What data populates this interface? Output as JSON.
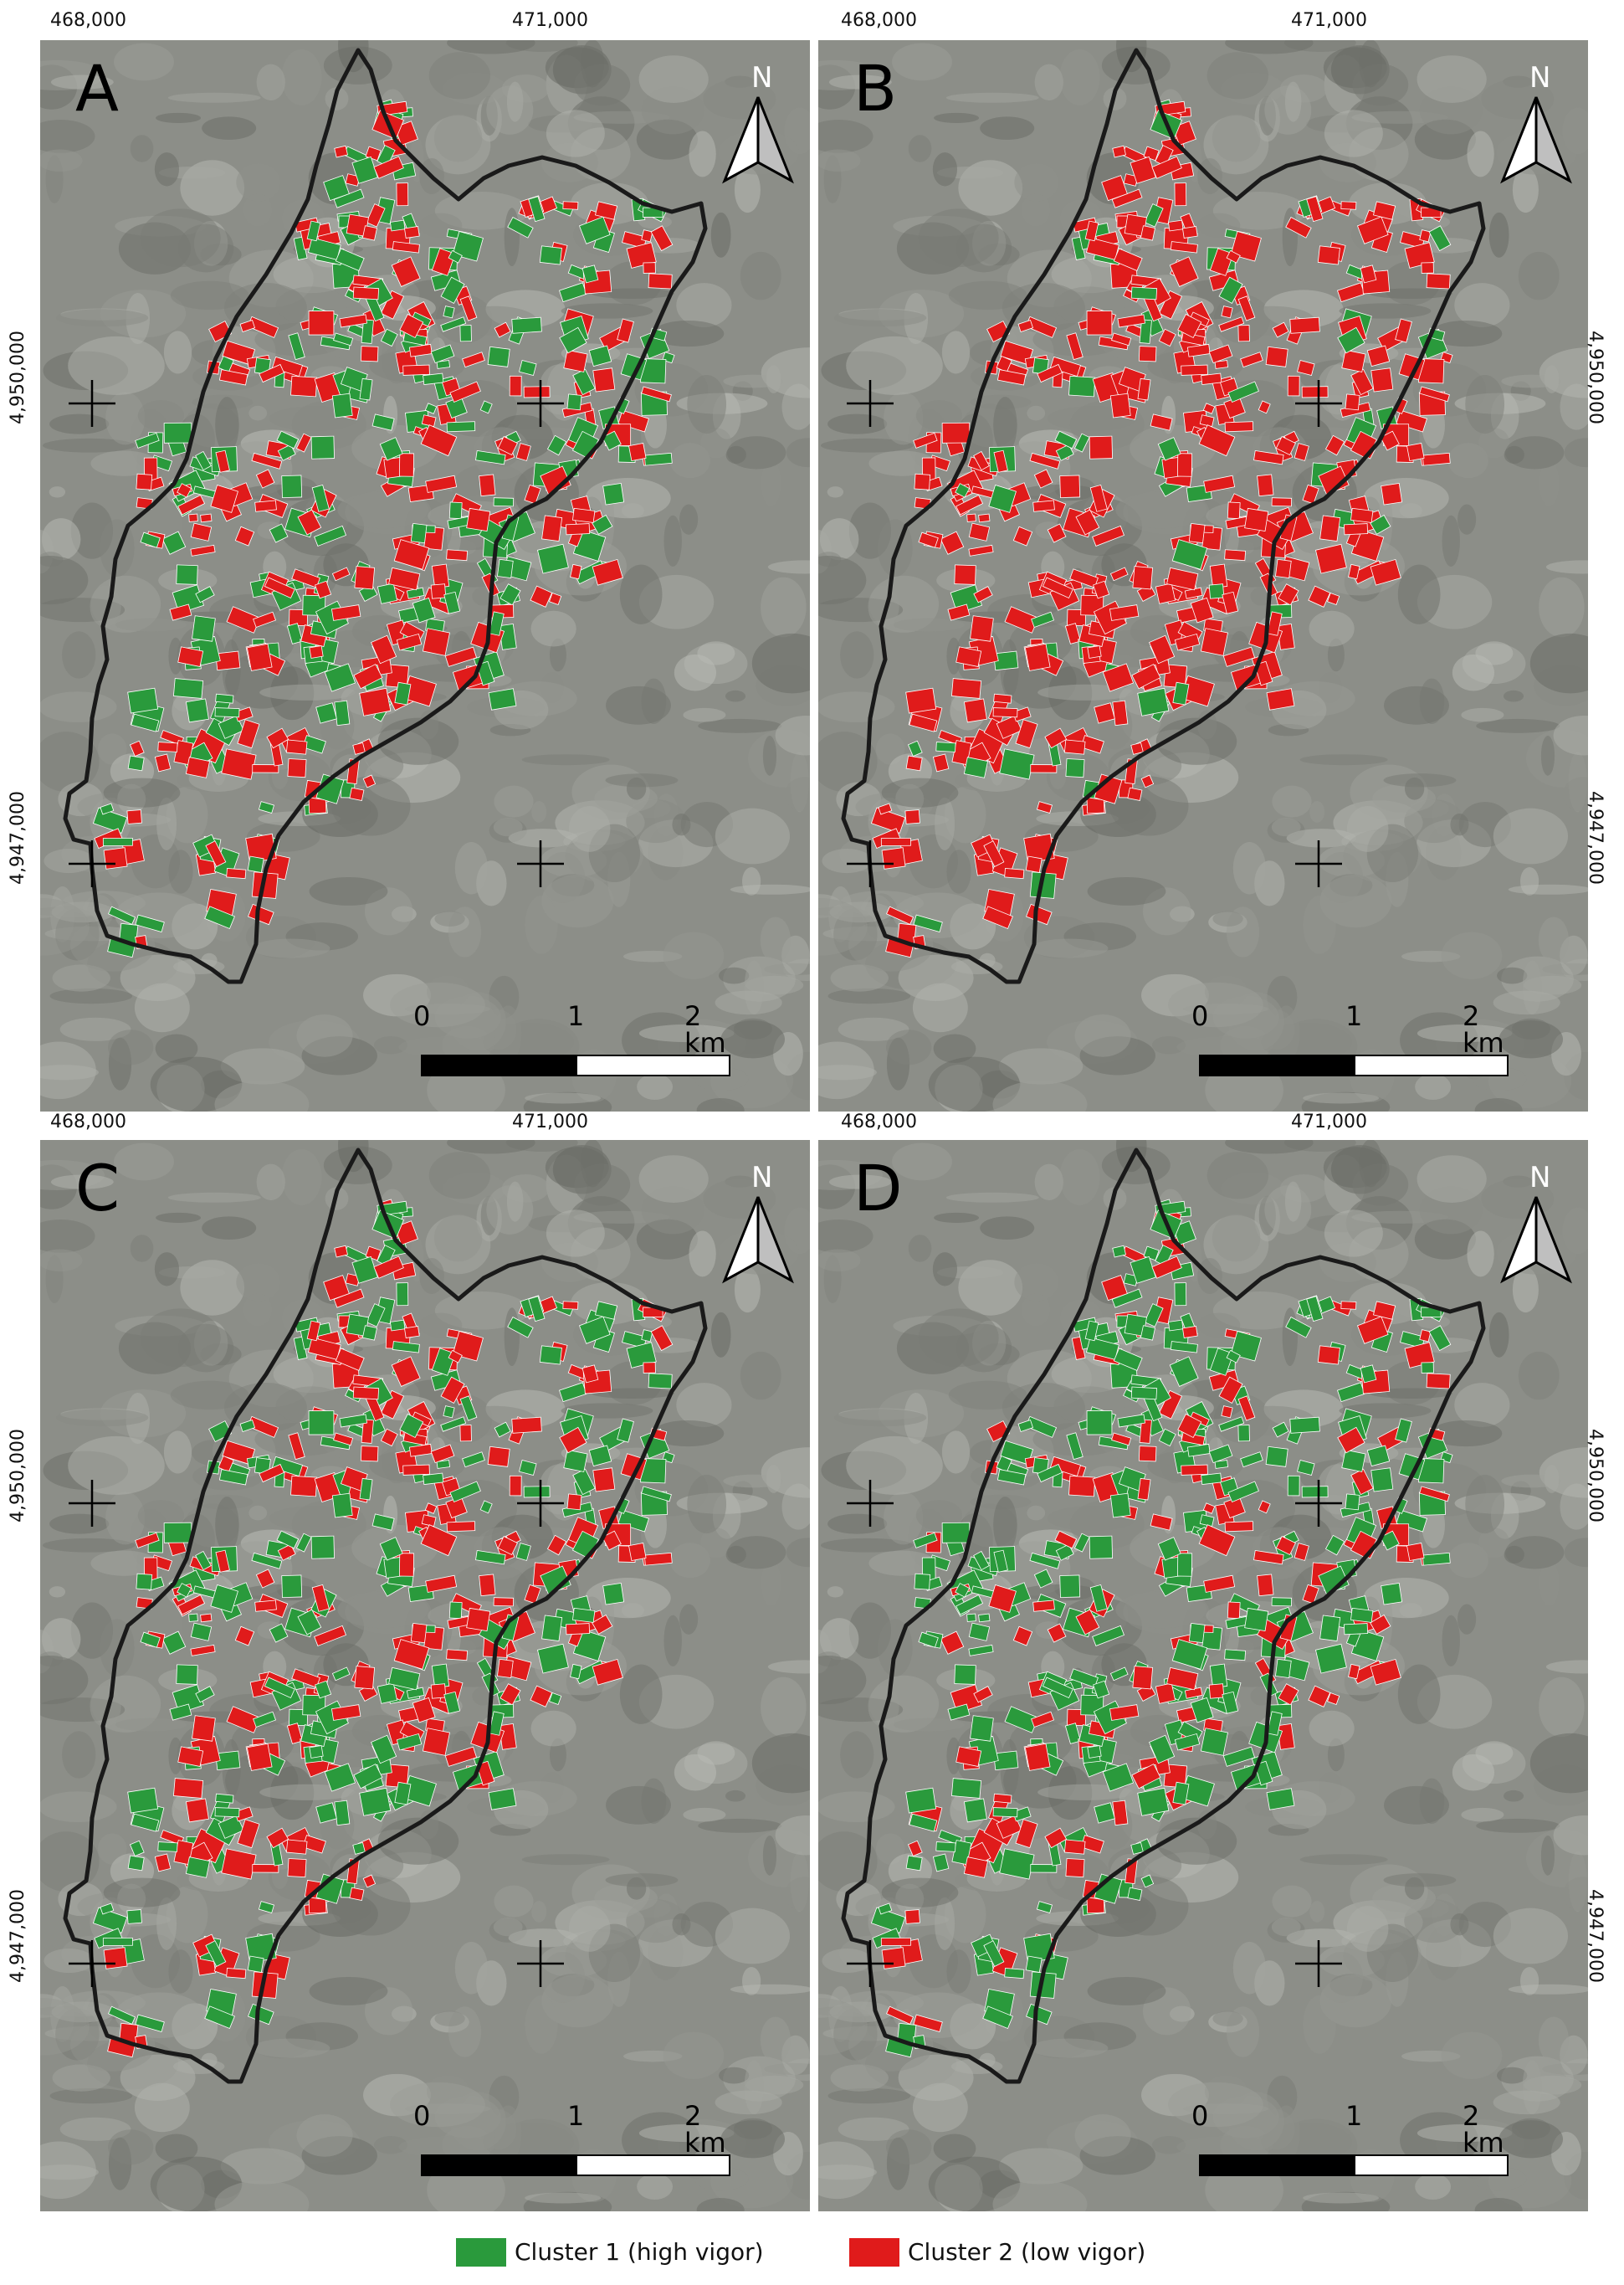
{
  "colors": {
    "cluster1": "#2a9a3c",
    "cluster2": "#e01b1b",
    "boundary": "#1a1a1a",
    "imagery": "#8c8e88"
  },
  "coordinates": {
    "easting_left": "468,000",
    "easting_right": "471,000",
    "northing_upper": "4,950,000",
    "northing_lower": "4,947,000"
  },
  "north_arrow": {
    "label": "N",
    "icon": "north-arrow-icon"
  },
  "scale_bar": {
    "ticks": [
      "0",
      "1",
      "2 km"
    ]
  },
  "panels": [
    {
      "letter": "A",
      "high_vigor_share": 0.5
    },
    {
      "letter": "B",
      "high_vigor_share": 0.15
    },
    {
      "letter": "C",
      "high_vigor_share": 0.45
    },
    {
      "letter": "D",
      "high_vigor_share": 0.7
    }
  ],
  "legend": {
    "cluster1_label": "Cluster 1 (high vigor)",
    "cluster2_label": "Cluster 2 (low vigor)"
  }
}
